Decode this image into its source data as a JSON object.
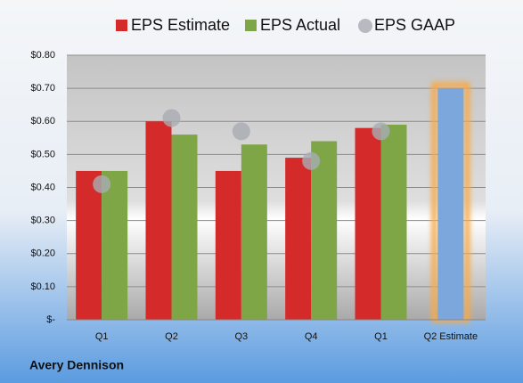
{
  "chart_data": {
    "type": "bar",
    "categories": [
      "Q1",
      "Q2",
      "Q3",
      "Q4",
      "Q1",
      "Q2 Estimate"
    ],
    "series": [
      {
        "name": "EPS Estimate",
        "color": "#d42a2a",
        "values": [
          0.45,
          0.6,
          0.45,
          0.49,
          0.58,
          0.7
        ]
      },
      {
        "name": "EPS Actual",
        "color": "#7fa646",
        "values": [
          0.45,
          0.56,
          0.53,
          0.54,
          0.59,
          null
        ]
      },
      {
        "name": "EPS GAAP",
        "color": "#a8adb3",
        "marker": "circle",
        "values": [
          0.41,
          0.61,
          0.57,
          0.48,
          0.57,
          null
        ]
      }
    ],
    "highlight_color": "#7ba7dc",
    "ylim": [
      0,
      0.8
    ],
    "yticks": [
      {
        "value": 0,
        "label": "$-"
      },
      {
        "value": 0.1,
        "label": "$0.10"
      },
      {
        "value": 0.2,
        "label": "$0.20"
      },
      {
        "value": 0.3,
        "label": "$0.30"
      },
      {
        "value": 0.4,
        "label": "$0.40"
      },
      {
        "value": 0.5,
        "label": "$0.50"
      },
      {
        "value": 0.6,
        "label": "$0.60"
      },
      {
        "value": 0.7,
        "label": "$0.70"
      },
      {
        "value": 0.8,
        "label": "$0.80"
      }
    ],
    "grid": true,
    "source": "Avery Dennison"
  }
}
